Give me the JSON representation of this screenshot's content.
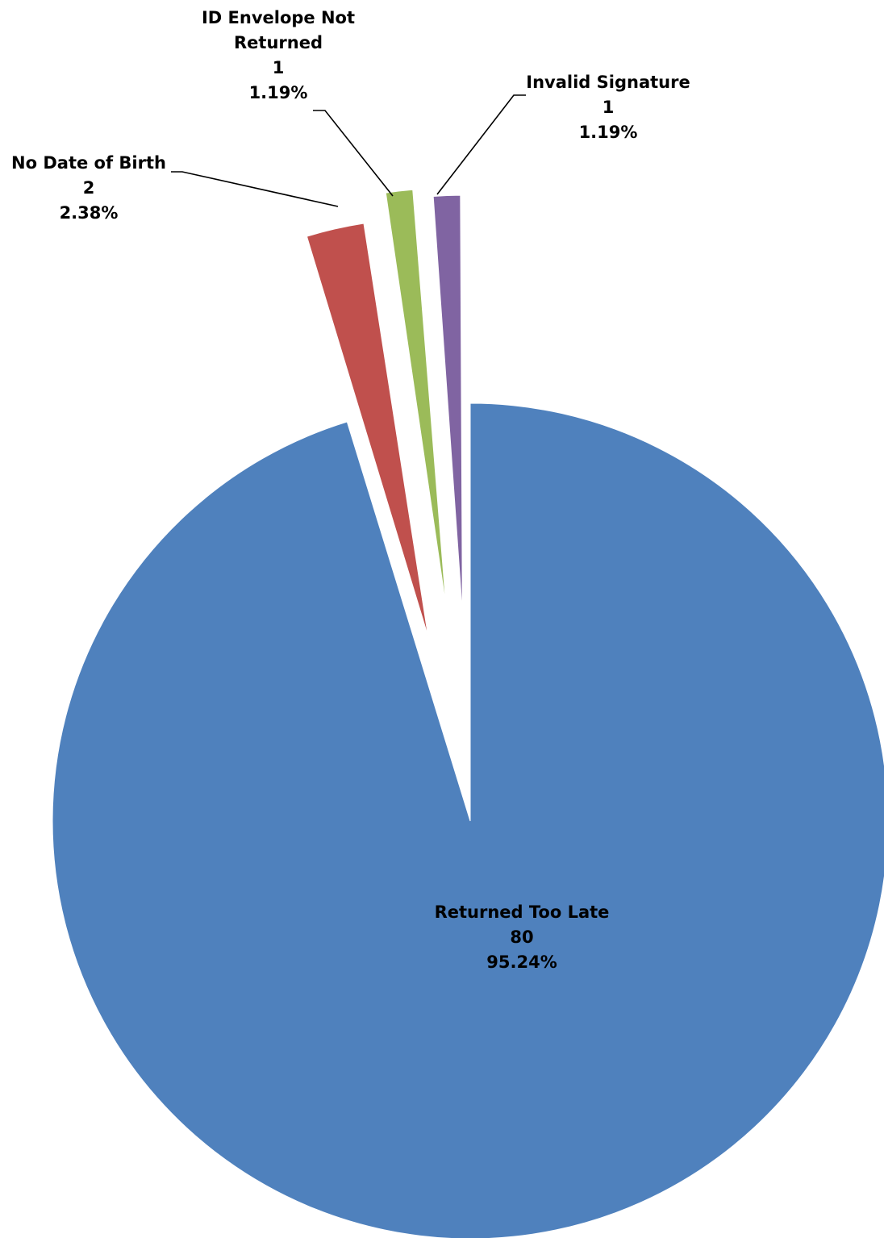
{
  "chart_data": {
    "type": "pie",
    "title": "",
    "slices": [
      {
        "name": "Returned Too Late",
        "value": 80,
        "percent": "95.24%",
        "value_label": "80",
        "color": "#4F81BD"
      },
      {
        "name": "No Date of Birth",
        "value": 2,
        "percent": "2.38%",
        "value_label": "2",
        "color": "#C0504D"
      },
      {
        "name": "ID Envelope Not Returned",
        "value": 1,
        "percent": "1.19%",
        "value_label": "1",
        "color": "#9BBB59"
      },
      {
        "name": "Invalid Signature",
        "value": 1,
        "percent": "1.19%",
        "value_label": "1",
        "color": "#8064A2"
      }
    ],
    "start_angle_deg": 0,
    "direction": "clockwise",
    "exploded": true,
    "legend": "none",
    "data_labels": "name-value-percent"
  }
}
